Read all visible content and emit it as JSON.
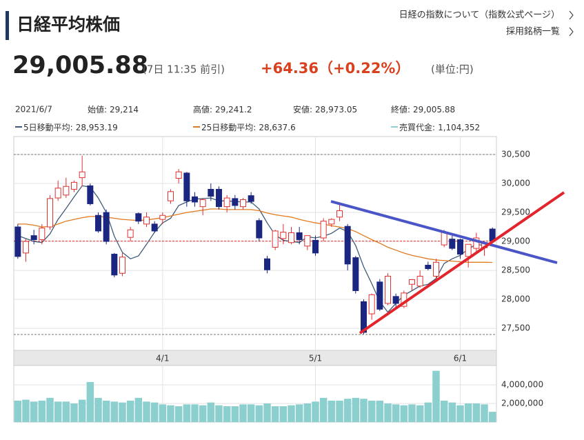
{
  "header": {
    "title": "日経平均株価",
    "links": [
      "日経の指数について（指数公式ページ）",
      "採用銘柄一覧"
    ],
    "price": "29,005.88",
    "time": "(7日 11:35 前引)",
    "change": "+64.36（+0.22%）",
    "unit": "(単位:円)"
  },
  "info": {
    "date": "2021/6/7",
    "items": [
      {
        "label": "始値:",
        "value": "29,214"
      },
      {
        "label": "高値:",
        "value": "29,241.2"
      },
      {
        "label": "安値:",
        "value": "28,973.05"
      },
      {
        "label": "終値:",
        "value": "29,005.88"
      }
    ]
  },
  "chart_data": [
    {
      "type": "candlestick",
      "categories": [
        null,
        null,
        null,
        null,
        null,
        null,
        null,
        null,
        null,
        null,
        null,
        null,
        null,
        null,
        null,
        null,
        null,
        null,
        "4/1",
        null,
        null,
        null,
        null,
        null,
        null,
        null,
        null,
        null,
        null,
        null,
        null,
        null,
        null,
        null,
        null,
        null,
        null,
        "5/1",
        null,
        null,
        null,
        null,
        null,
        null,
        null,
        null,
        null,
        null,
        null,
        null,
        null,
        null,
        null,
        null,
        null,
        "6/1",
        null,
        null,
        null,
        null
      ],
      "open": [
        29250,
        28800,
        29100,
        29030,
        29250,
        29750,
        29800,
        29900,
        30100,
        29960,
        29450,
        29500,
        28780,
        28450,
        29070,
        29480,
        29300,
        29300,
        29380,
        29700,
        30090,
        30180,
        29770,
        29600,
        29900,
        29900,
        29600,
        29740,
        29600,
        29790,
        29360,
        28700,
        28900,
        29050,
        28980,
        29150,
        28920,
        29020,
        29060,
        29300,
        29420,
        29260,
        28720,
        27960,
        27750,
        28300,
        27930,
        28050,
        27880,
        28260,
        28230,
        28590,
        28400,
        28940,
        29040,
        29030,
        28740,
        28880,
        28890,
        29214
      ],
      "high": [
        29300,
        29050,
        29200,
        29300,
        29800,
        30050,
        30100,
        30050,
        30480,
        30000,
        29500,
        29550,
        28800,
        28800,
        29250,
        29500,
        29500,
        29350,
        29500,
        29900,
        30250,
        30200,
        29850,
        29750,
        30000,
        29950,
        29800,
        29800,
        29750,
        29850,
        29400,
        28750,
        29200,
        29300,
        29250,
        29250,
        29100,
        29100,
        29400,
        29400,
        29650,
        29300,
        28750,
        28000,
        28100,
        28350,
        28450,
        28100,
        28150,
        28350,
        28500,
        28650,
        28700,
        29200,
        29100,
        29050,
        28950,
        29150,
        29000,
        29241.2
      ],
      "low": [
        28700,
        28650,
        28950,
        28950,
        29200,
        29700,
        29750,
        29850,
        29950,
        29620,
        29150,
        28950,
        28380,
        28400,
        29000,
        29300,
        29250,
        29150,
        29300,
        29650,
        30000,
        29600,
        29600,
        29450,
        29700,
        29550,
        29500,
        29550,
        29550,
        29650,
        29000,
        28450,
        28850,
        28950,
        28950,
        28950,
        28850,
        28750,
        29000,
        29250,
        29350,
        28500,
        28100,
        27400,
        27650,
        27800,
        27900,
        27850,
        27850,
        28150,
        28200,
        28500,
        28350,
        28900,
        28850,
        28700,
        28550,
        28800,
        28750,
        28973.05
      ],
      "close": [
        28740,
        29000,
        29030,
        29230,
        29740,
        29920,
        29950,
        30020,
        30200,
        29650,
        29180,
        29000,
        28420,
        28730,
        29200,
        29350,
        29420,
        29180,
        29450,
        29860,
        30200,
        29700,
        29680,
        29720,
        29780,
        29600,
        29750,
        29620,
        29720,
        29690,
        29060,
        28510,
        29180,
        29160,
        29150,
        29030,
        29100,
        28800,
        29350,
        29380,
        29530,
        28610,
        28150,
        27430,
        28080,
        27830,
        28400,
        27930,
        28110,
        28340,
        28400,
        28530,
        28640,
        29160,
        28880,
        28780,
        28950,
        29060,
        28980,
        29005.88
      ],
      "up_color": "#e0302f",
      "down_color": "#1b2680",
      "series": [
        {
          "name": "5日移動平均",
          "legend_value": "28,953.19",
          "color": "#3c5a78",
          "values": [
            29100,
            29050,
            29000,
            28980,
            29130,
            29380,
            29570,
            29770,
            29960,
            29940,
            29750,
            29500,
            29090,
            28810,
            28700,
            28750,
            28950,
            29160,
            29320,
            29400,
            29620,
            29680,
            29730,
            29740,
            29750,
            29700,
            29700,
            29690,
            29680,
            29680,
            29560,
            29320,
            29110,
            29020,
            29000,
            28980,
            29080,
            29060,
            29090,
            29140,
            29230,
            29170,
            28930,
            28560,
            28270,
            27960,
            27780,
            27930,
            28070,
            28150,
            28230,
            28260,
            28360,
            28620,
            28700,
            28760,
            28870,
            28950,
            28930,
            28953.19
          ]
        },
        {
          "name": "25日移動平均",
          "legend_value": "28,637.6",
          "color": "#e07a1e",
          "values": [
            29300,
            29300,
            29280,
            29250,
            29260,
            29300,
            29350,
            29380,
            29410,
            29430,
            29430,
            29420,
            29400,
            29380,
            29370,
            29360,
            29370,
            29390,
            29410,
            29440,
            29470,
            29500,
            29520,
            29540,
            29560,
            29560,
            29550,
            29550,
            29550,
            29550,
            29530,
            29490,
            29460,
            29440,
            29420,
            29380,
            29350,
            29320,
            29300,
            29270,
            29250,
            29220,
            29170,
            29100,
            29030,
            28970,
            28900,
            28850,
            28800,
            28760,
            28730,
            28700,
            28680,
            28670,
            28660,
            28650,
            28640,
            28640,
            28640,
            28637.6
          ]
        }
      ],
      "ylim": [
        27120,
        30810
      ],
      "yticks": [
        {
          "value": 30500,
          "label": "30,500"
        },
        {
          "value": 30000,
          "label": "30,000"
        },
        {
          "value": 29500,
          "label": "29,500"
        },
        {
          "value": 29000,
          "label": "29,000"
        },
        {
          "value": 28500,
          "label": "28,500"
        },
        {
          "value": 28000,
          "label": "28,000"
        },
        {
          "value": 27500,
          "label": "27,500"
        }
      ],
      "grid": true
    },
    {
      "type": "bar",
      "series": [
        {
          "name": "売買代金",
          "legend_value": "1,104,352",
          "color": "#8ccfcf",
          "values": [
            2300000,
            2400000,
            2200000,
            2300000,
            2600000,
            2200000,
            2200000,
            2000000,
            2400000,
            4300000,
            2600000,
            2300000,
            2200000,
            2100000,
            2300000,
            2600000,
            2200000,
            2100000,
            1900000,
            1800000,
            1700000,
            1900000,
            1900000,
            1800000,
            2100000,
            1800000,
            1700000,
            1700000,
            1900000,
            1900000,
            1800000,
            2000000,
            1700000,
            1700000,
            1800000,
            1900000,
            2000000,
            2200000,
            2600000,
            2300000,
            2300000,
            2500000,
            2600000,
            2500000,
            2300000,
            2300000,
            2000000,
            1900000,
            1800000,
            1900000,
            1800000,
            2100000,
            5500000,
            2300000,
            2100000,
            1800000,
            2000000,
            2000000,
            1900000,
            1104352
          ]
        }
      ],
      "ylim": [
        0,
        6070000
      ],
      "yticks": [
        {
          "value": 4000000,
          "label": "4,000,000"
        },
        {
          "value": 2000000,
          "label": "2,000,000"
        }
      ],
      "grid": true
    }
  ]
}
